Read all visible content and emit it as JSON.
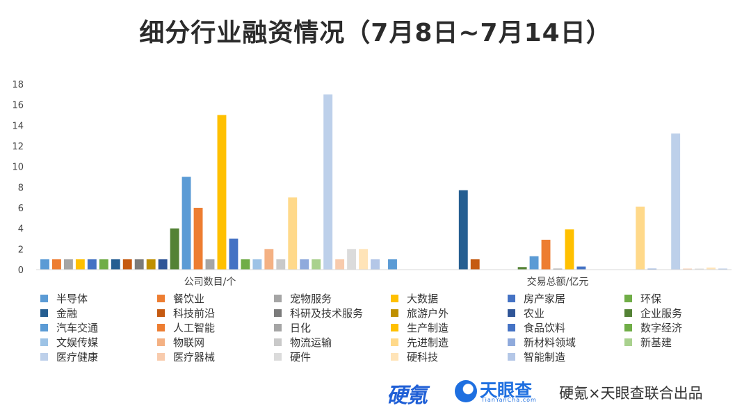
{
  "title": "细分行业融资情况（7月8日~7月14日）",
  "chart_data": {
    "type": "bar",
    "title": "细分行业融资情况（7月8日~7月14日）",
    "categories": [
      "公司数目/个",
      "交易总额/亿元"
    ],
    "ylim": [
      0,
      18
    ],
    "yticks": [
      0,
      2,
      4,
      6,
      8,
      10,
      12,
      14,
      16,
      18
    ],
    "grid": false,
    "legend_position": "bottom",
    "series": [
      {
        "name": "半导体",
        "color": "#5b9bd5",
        "values": [
          1,
          1
        ]
      },
      {
        "name": "餐饮业",
        "color": "#ed7d31",
        "values": [
          1,
          0
        ]
      },
      {
        "name": "宠物服务",
        "color": "#a5a5a5",
        "values": [
          1,
          0
        ]
      },
      {
        "name": "大数据",
        "color": "#ffc000",
        "values": [
          1,
          0
        ]
      },
      {
        "name": "房产家居",
        "color": "#4472c4",
        "values": [
          1,
          0
        ]
      },
      {
        "name": "环保",
        "color": "#70ad47",
        "values": [
          1,
          0
        ]
      },
      {
        "name": "金融",
        "color": "#255e91",
        "values": [
          1,
          7.7
        ]
      },
      {
        "name": "科技前沿",
        "color": "#c55a11",
        "values": [
          1,
          1
        ]
      },
      {
        "name": "科研及技术服务",
        "color": "#7b7b7b",
        "values": [
          1,
          0
        ]
      },
      {
        "name": "旅游户外",
        "color": "#bf9000",
        "values": [
          1,
          0
        ]
      },
      {
        "name": "农业",
        "color": "#2f5597",
        "values": [
          1,
          0
        ]
      },
      {
        "name": "企业服务",
        "color": "#548235",
        "values": [
          4,
          0.25
        ]
      },
      {
        "name": "汽车交通",
        "color": "#5b9bd5",
        "values": [
          9,
          1.3
        ]
      },
      {
        "name": "人工智能",
        "color": "#ed7d31",
        "values": [
          6,
          2.9
        ]
      },
      {
        "name": "日化",
        "color": "#a5a5a5",
        "values": [
          1,
          0.1
        ]
      },
      {
        "name": "生产制造",
        "color": "#ffc000",
        "values": [
          15,
          3.9
        ]
      },
      {
        "name": "食品饮料",
        "color": "#4472c4",
        "values": [
          3,
          0.3
        ]
      },
      {
        "name": "数字经济",
        "color": "#70ad47",
        "values": [
          1,
          0
        ]
      },
      {
        "name": "文娱传媒",
        "color": "#9dc3e6",
        "values": [
          1,
          0
        ]
      },
      {
        "name": "物联网",
        "color": "#f4b183",
        "values": [
          2,
          0
        ]
      },
      {
        "name": "物流运输",
        "color": "#c9c9c9",
        "values": [
          1,
          0
        ]
      },
      {
        "name": "先进制造",
        "color": "#ffd98a",
        "values": [
          7,
          6.1
        ]
      },
      {
        "name": "新材料领域",
        "color": "#8faadc",
        "values": [
          1,
          0.1
        ]
      },
      {
        "name": "新基建",
        "color": "#a9d18e",
        "values": [
          1,
          0
        ]
      },
      {
        "name": "医疗健康",
        "color": "#bdd0ea",
        "values": [
          17,
          13.2
        ]
      },
      {
        "name": "医疗器械",
        "color": "#f8cbad",
        "values": [
          1,
          0.1
        ]
      },
      {
        "name": "硬件",
        "color": "#dbdbdb",
        "values": [
          2,
          0.1
        ]
      },
      {
        "name": "硬科技",
        "color": "#ffe4b8",
        "values": [
          2,
          0.2
        ]
      },
      {
        "name": "智能制造",
        "color": "#b4c7e7",
        "values": [
          1,
          0.1
        ]
      }
    ]
  },
  "footer": {
    "logo_yingke": "硬氪",
    "logo_tyc_name": "天眼查",
    "logo_tyc_sub": "TianYanCha.com",
    "tagline": "硬氪×天眼查联合出品"
  }
}
